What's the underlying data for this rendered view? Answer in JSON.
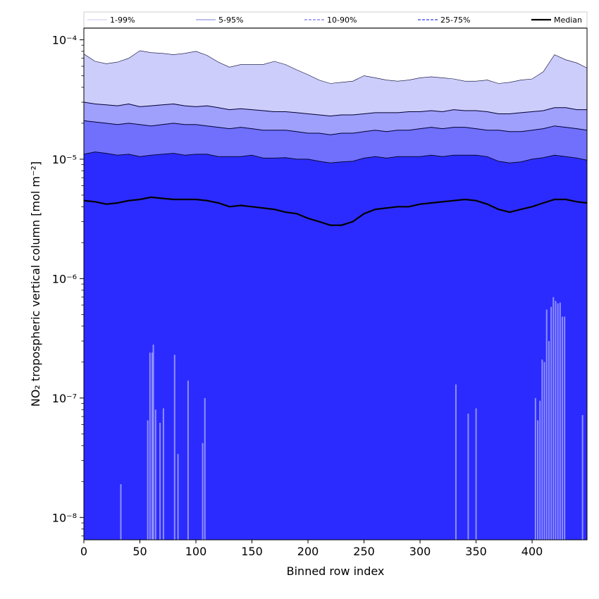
{
  "chart_data": {
    "type": "area",
    "xlabel": "Binned row index",
    "ylabel": "NO₂ tropospheric vertical column [mol m⁻²]",
    "xlim": [
      0,
      449
    ],
    "ylim": [
      6.5e-09,
      0.000125
    ],
    "yscale": "log",
    "x_ticks": [
      0,
      50,
      100,
      150,
      200,
      250,
      300,
      350,
      400
    ],
    "y_ticks": [
      {
        "value": 1e-08,
        "label": "10⁻⁸"
      },
      {
        "value": 1e-07,
        "label": "10⁻⁷"
      },
      {
        "value": 1e-06,
        "label": "10⁻⁶"
      },
      {
        "value": 1e-05,
        "label": "10⁻⁵"
      },
      {
        "value": 0.0001,
        "label": "10⁻⁴"
      }
    ],
    "legend_position": "top",
    "legend": [
      {
        "label": "1-99%",
        "color": "#dcdcf8",
        "style": "solid"
      },
      {
        "label": "5-95%",
        "color": "#a8a8ec",
        "style": "solid"
      },
      {
        "label": "10-90%",
        "color": "#8c8cf4",
        "style": "dashed"
      },
      {
        "label": "25-75%",
        "color": "#5a5af0",
        "style": "dashed"
      },
      {
        "label": "Median",
        "color": "#000000",
        "style": "solid"
      }
    ],
    "x": [
      0,
      10,
      20,
      30,
      40,
      50,
      60,
      70,
      80,
      90,
      100,
      110,
      120,
      130,
      140,
      150,
      160,
      170,
      180,
      190,
      200,
      210,
      220,
      230,
      240,
      250,
      260,
      270,
      280,
      290,
      300,
      310,
      320,
      330,
      340,
      350,
      360,
      370,
      380,
      390,
      400,
      410,
      420,
      430,
      440,
      449
    ],
    "series": [
      {
        "name": "1-99%",
        "role": "bottom",
        "color": "#2b2bff",
        "values": [
          6.5e-09,
          6.5e-09,
          6.5e-09,
          6.5e-09,
          6.5e-09,
          6.5e-09,
          6.5e-09,
          6.5e-09,
          6.5e-09,
          6.5e-09,
          6.5e-09,
          6.5e-09,
          6.5e-09,
          6.5e-09,
          6.5e-09,
          6.5e-09,
          6.5e-09,
          6.5e-09,
          6.5e-09,
          6.5e-09,
          6.5e-09,
          6.5e-09,
          6.5e-09,
          6.5e-09,
          6.5e-09,
          6.5e-09,
          6.5e-09,
          6.5e-09,
          6.5e-09,
          6.5e-09,
          6.5e-09,
          6.5e-09,
          6.5e-09,
          6.5e-09,
          6.5e-09,
          6.5e-09,
          6.5e-09,
          6.5e-09,
          6.5e-09,
          6.5e-09,
          6.5e-09,
          6.5e-09,
          6.5e-09,
          6.5e-09,
          6.5e-09,
          6.5e-09
        ]
      },
      {
        "name": "5-95%",
        "role": "upper-99",
        "color": "#cdcdfb",
        "values": [
          7.6e-05,
          6.6e-05,
          6.3e-05,
          6.5e-05,
          7e-05,
          8.1e-05,
          7.8e-05,
          7.7e-05,
          7.5e-05,
          7.7e-05,
          8e-05,
          7.4e-05,
          6.5e-05,
          5.9e-05,
          6.2e-05,
          6.2e-05,
          6.2e-05,
          6.6e-05,
          6.2e-05,
          5.6e-05,
          5.1e-05,
          4.6e-05,
          4.3e-05,
          4.4e-05,
          4.5e-05,
          5e-05,
          4.8e-05,
          4.6e-05,
          4.5e-05,
          4.6e-05,
          4.8e-05,
          4.9e-05,
          4.8e-05,
          4.7e-05,
          4.5e-05,
          4.5e-05,
          4.6e-05,
          4.3e-05,
          4.4e-05,
          4.6e-05,
          4.7e-05,
          5.4e-05,
          7.5e-05,
          6.8e-05,
          6.4e-05,
          5.8e-05
        ]
      },
      {
        "name": "95%",
        "role": "upper-95",
        "color": "#9f9ffc",
        "values": [
          3e-05,
          2.9e-05,
          2.85e-05,
          2.8e-05,
          2.9e-05,
          2.75e-05,
          2.8e-05,
          2.85e-05,
          2.9e-05,
          2.8e-05,
          2.75e-05,
          2.8e-05,
          2.7e-05,
          2.6e-05,
          2.65e-05,
          2.6e-05,
          2.55e-05,
          2.5e-05,
          2.5e-05,
          2.45e-05,
          2.4e-05,
          2.35e-05,
          2.3e-05,
          2.35e-05,
          2.35e-05,
          2.4e-05,
          2.45e-05,
          2.45e-05,
          2.45e-05,
          2.5e-05,
          2.5e-05,
          2.55e-05,
          2.5e-05,
          2.6e-05,
          2.55e-05,
          2.55e-05,
          2.5e-05,
          2.4e-05,
          2.4e-05,
          2.45e-05,
          2.5e-05,
          2.55e-05,
          2.7e-05,
          2.7e-05,
          2.6e-05,
          2.6e-05
        ]
      },
      {
        "name": "90%",
        "role": "upper-90",
        "color": "#7070fd",
        "values": [
          2.1e-05,
          2.05e-05,
          2e-05,
          1.95e-05,
          2e-05,
          1.95e-05,
          1.9e-05,
          1.95e-05,
          2e-05,
          1.95e-05,
          1.95e-05,
          1.9e-05,
          1.85e-05,
          1.8e-05,
          1.85e-05,
          1.8e-05,
          1.75e-05,
          1.75e-05,
          1.75e-05,
          1.7e-05,
          1.65e-05,
          1.65e-05,
          1.6e-05,
          1.65e-05,
          1.65e-05,
          1.7e-05,
          1.75e-05,
          1.7e-05,
          1.75e-05,
          1.75e-05,
          1.8e-05,
          1.85e-05,
          1.8e-05,
          1.85e-05,
          1.85e-05,
          1.8e-05,
          1.75e-05,
          1.75e-05,
          1.7e-05,
          1.7e-05,
          1.75e-05,
          1.8e-05,
          1.9e-05,
          1.85e-05,
          1.8e-05,
          1.75e-05
        ]
      },
      {
        "name": "75%",
        "role": "upper-75",
        "color": "#4b4bfe",
        "values": [
          1.1e-05,
          1.15e-05,
          1.12e-05,
          1.08e-05,
          1.1e-05,
          1.05e-05,
          1.08e-05,
          1.1e-05,
          1.12e-05,
          1.08e-05,
          1.1e-05,
          1.1e-05,
          1.05e-05,
          1.05e-05,
          1.05e-05,
          1.08e-05,
          1.02e-05,
          1.02e-05,
          1.03e-05,
          1e-05,
          1e-05,
          9.6e-06,
          9.3e-06,
          9.5e-06,
          9.6e-06,
          1.02e-05,
          1.05e-05,
          1.02e-05,
          1.05e-05,
          1.05e-05,
          1.05e-05,
          1.08e-05,
          1.05e-05,
          1.08e-05,
          1.08e-05,
          1.08e-05,
          1.05e-05,
          9.6e-06,
          9.3e-06,
          9.5e-06,
          1e-05,
          1.03e-05,
          1.08e-05,
          1.05e-05,
          1.02e-05,
          9.8e-06
        ]
      },
      {
        "name": "Median",
        "role": "median",
        "color": "#000000",
        "values": [
          4.5e-06,
          4.4e-06,
          4.2e-06,
          4.3e-06,
          4.5e-06,
          4.6e-06,
          4.8e-06,
          4.7e-06,
          4.6e-06,
          4.6e-06,
          4.6e-06,
          4.5e-06,
          4.3e-06,
          4e-06,
          4.1e-06,
          4e-06,
          3.9e-06,
          3.8e-06,
          3.6e-06,
          3.5e-06,
          3.2e-06,
          3e-06,
          2.8e-06,
          2.8e-06,
          3e-06,
          3.5e-06,
          3.8e-06,
          3.9e-06,
          4e-06,
          4e-06,
          4.2e-06,
          4.3e-06,
          4.4e-06,
          4.5e-06,
          4.6e-06,
          4.5e-06,
          4.2e-06,
          3.8e-06,
          3.6e-06,
          3.8e-06,
          4e-06,
          4.3e-06,
          4.6e-06,
          4.6e-06,
          4.4e-06,
          4.3e-06
        ]
      }
    ],
    "low_spikes": [
      {
        "x": 33,
        "y": 1.9e-08
      },
      {
        "x": 57,
        "y": 6.5e-08
      },
      {
        "x": 59,
        "y": 2.4e-07
      },
      {
        "x": 61,
        "y": 2.4e-07
      },
      {
        "x": 62,
        "y": 2.8e-07
      },
      {
        "x": 64,
        "y": 8e-08
      },
      {
        "x": 68,
        "y": 6.2e-08
      },
      {
        "x": 71,
        "y": 8.2e-08
      },
      {
        "x": 81,
        "y": 2.3e-07
      },
      {
        "x": 84,
        "y": 3.4e-08
      },
      {
        "x": 93,
        "y": 1.4e-07
      },
      {
        "x": 106,
        "y": 4.2e-08
      },
      {
        "x": 108,
        "y": 1e-07
      },
      {
        "x": 332,
        "y": 1.3e-07
      },
      {
        "x": 343,
        "y": 7.4e-08
      },
      {
        "x": 350,
        "y": 8.2e-08
      },
      {
        "x": 403,
        "y": 1e-07
      },
      {
        "x": 405,
        "y": 6.5e-08
      },
      {
        "x": 407,
        "y": 9.5e-08
      },
      {
        "x": 409,
        "y": 2.1e-07
      },
      {
        "x": 411,
        "y": 2e-07
      },
      {
        "x": 413,
        "y": 5.5e-07
      },
      {
        "x": 415,
        "y": 3e-07
      },
      {
        "x": 417,
        "y": 5.8e-07
      },
      {
        "x": 419,
        "y": 7e-07
      },
      {
        "x": 421,
        "y": 6.5e-07
      },
      {
        "x": 423,
        "y": 6.2e-07
      },
      {
        "x": 425,
        "y": 6.3e-07
      },
      {
        "x": 427,
        "y": 4.8e-07
      },
      {
        "x": 429,
        "y": 4.8e-07
      },
      {
        "x": 445,
        "y": 7.2e-08
      }
    ]
  }
}
